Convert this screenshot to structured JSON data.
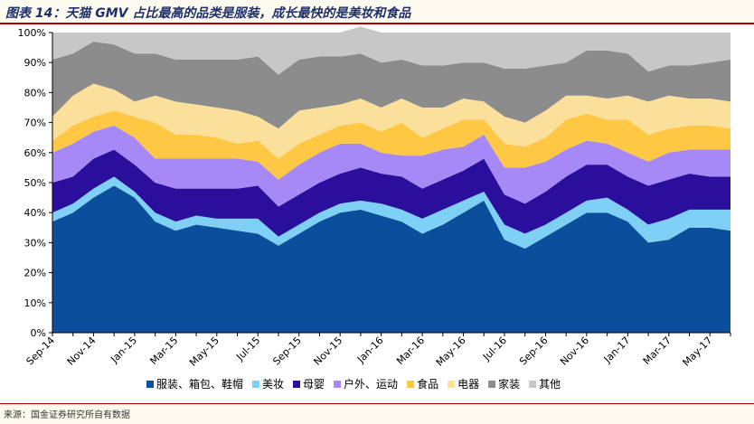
{
  "header": {
    "title": "图表 14：天猫 GMV 占比最高的品类是服装，成长最快的是美妆和食品"
  },
  "footer": {
    "source": "来源：国金证券研究所自有数据"
  },
  "chart_data": {
    "type": "area",
    "stacked": true,
    "percent_stacked": true,
    "ylim": [
      0,
      100
    ],
    "y_ticks": [
      "0%",
      "10%",
      "20%",
      "30%",
      "40%",
      "50%",
      "60%",
      "70%",
      "80%",
      "90%",
      "100%"
    ],
    "x_tick_labels": [
      "Sep-14",
      "Nov-14",
      "Jan-15",
      "Mar-15",
      "May-15",
      "Jul-15",
      "Sep-15",
      "Nov-15",
      "Jan-16",
      "Mar-16",
      "May-16",
      "Jul-16",
      "Sep-16",
      "Nov-16",
      "Jan-17",
      "Mar-17",
      "May-17"
    ],
    "x": [
      "Sep-14",
      "Oct-14",
      "Nov-14",
      "Dec-14",
      "Jan-15",
      "Feb-15",
      "Mar-15",
      "Apr-15",
      "May-15",
      "Jun-15",
      "Jul-15",
      "Aug-15",
      "Sep-15",
      "Oct-15",
      "Nov-15",
      "Dec-15",
      "Jan-16",
      "Feb-16",
      "Mar-16",
      "Apr-16",
      "May-16",
      "Jun-16",
      "Jul-16",
      "Aug-16",
      "Sep-16",
      "Oct-16",
      "Nov-16",
      "Dec-16",
      "Jan-17",
      "Feb-17",
      "Mar-17",
      "Apr-17",
      "May-17",
      "Jun-17"
    ],
    "legend_position": "bottom",
    "series": [
      {
        "name": "服装、箱包、鞋帽",
        "color": "#0b4f9c",
        "values": [
          37,
          40,
          45,
          49,
          45,
          37,
          34,
          36,
          35,
          34,
          33,
          29,
          33,
          37,
          40,
          41,
          39,
          37,
          33,
          36,
          40,
          44,
          31,
          28,
          32,
          36,
          40,
          40,
          37,
          30,
          31,
          35,
          35,
          34
        ]
      },
      {
        "name": "美妆",
        "color": "#7fd0f5",
        "values": [
          3,
          3,
          3,
          3,
          2,
          3,
          3,
          3,
          3,
          4,
          5,
          3,
          3,
          3,
          3,
          3,
          4,
          4,
          5,
          5,
          4,
          3,
          5,
          5,
          4,
          4,
          4,
          5,
          4,
          6,
          7,
          6,
          6,
          7
        ]
      },
      {
        "name": "母婴",
        "color": "#2a0f9c",
        "values": [
          10,
          9,
          10,
          9,
          9,
          10,
          11,
          9,
          10,
          10,
          11,
          10,
          10,
          10,
          10,
          11,
          10,
          11,
          10,
          10,
          10,
          11,
          10,
          10,
          11,
          12,
          12,
          11,
          11,
          13,
          13,
          12,
          11,
          11
        ]
      },
      {
        "name": "户外、运动",
        "color": "#a689f7",
        "values": [
          10,
          11,
          9,
          8,
          9,
          8,
          10,
          10,
          10,
          10,
          8,
          9,
          10,
          10,
          10,
          8,
          7,
          7,
          11,
          10,
          8,
          8,
          9,
          12,
          10,
          9,
          8,
          7,
          8,
          8,
          9,
          8,
          9,
          9
        ]
      },
      {
        "name": "食品",
        "color": "#ffc844",
        "values": [
          4,
          6,
          5,
          5,
          7,
          12,
          8,
          8,
          7,
          5,
          7,
          7,
          7,
          6,
          6,
          7,
          7,
          11,
          6,
          7,
          9,
          5,
          8,
          7,
          8,
          10,
          9,
          8,
          11,
          9,
          8,
          8,
          8,
          7
        ]
      },
      {
        "name": "电器",
        "color": "#fbe09b",
        "values": [
          8,
          10,
          11,
          7,
          5,
          9,
          11,
          10,
          10,
          11,
          8,
          10,
          11,
          9,
          7,
          8,
          8,
          8,
          10,
          7,
          7,
          6,
          9,
          8,
          9,
          8,
          6,
          7,
          8,
          11,
          11,
          9,
          9,
          9
        ]
      },
      {
        "name": "家装",
        "color": "#8c8c8c",
        "values": [
          19,
          14,
          14,
          15,
          16,
          14,
          14,
          15,
          16,
          17,
          20,
          18,
          17,
          17,
          16,
          15,
          15,
          13,
          14,
          14,
          12,
          13,
          16,
          18,
          15,
          11,
          15,
          16,
          14,
          10,
          10,
          11,
          12,
          14
        ]
      },
      {
        "name": "其他",
        "color": "#c7c7c7",
        "values": [
          9,
          7,
          3,
          4,
          7,
          7,
          9,
          9,
          9,
          9,
          8,
          14,
          9,
          8,
          8,
          9,
          10,
          9,
          11,
          11,
          10,
          10,
          12,
          12,
          11,
          10,
          6,
          6,
          7,
          13,
          11,
          11,
          10,
          9
        ]
      }
    ]
  }
}
